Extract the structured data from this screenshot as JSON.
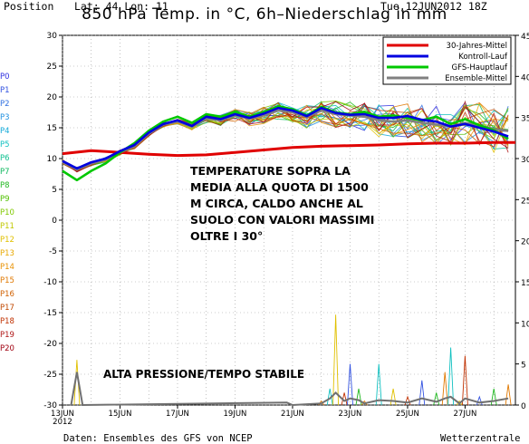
{
  "header": {
    "position_label": "Position",
    "coords": "Lat: 44 Lon: 11",
    "date": "Tue,12JUN2012 18Z",
    "title": "850 hPa Temp. in °C, 6h–Niederschlag in mm"
  },
  "members": [
    {
      "label": "P0",
      "color": "#3030e0"
    },
    {
      "label": "P1",
      "color": "#3050e0"
    },
    {
      "label": "P2",
      "color": "#3070e0"
    },
    {
      "label": "P3",
      "color": "#2090e0"
    },
    {
      "label": "P4",
      "color": "#10a8d8"
    },
    {
      "label": "P5",
      "color": "#10c0c0"
    },
    {
      "label": "P6",
      "color": "#10c090"
    },
    {
      "label": "P7",
      "color": "#10b860"
    },
    {
      "label": "P8",
      "color": "#20b820"
    },
    {
      "label": "P9",
      "color": "#50c000"
    },
    {
      "label": "P10",
      "color": "#80c800"
    },
    {
      "label": "P11",
      "color": "#c0c800"
    },
    {
      "label": "P12",
      "color": "#e0c000"
    },
    {
      "label": "P13",
      "color": "#e8a800"
    },
    {
      "label": "P14",
      "color": "#e89000"
    },
    {
      "label": "P15",
      "color": "#e07800"
    },
    {
      "label": "P16",
      "color": "#d06000"
    },
    {
      "label": "P17",
      "color": "#c04800"
    },
    {
      "label": "P18",
      "color": "#c03000"
    },
    {
      "label": "P19",
      "color": "#b01818"
    },
    {
      "label": "P20",
      "color": "#a00010"
    }
  ],
  "annotation_main": "TEMPERATURE SOPRA LA MEDIA ALLA QUOTA DI 1500 M CIRCA, CALDO ANCHE AL SUOLO CON VALORI MASSIMI OLTRE I 30°",
  "annotation_bottom": "ALTA PRESSIONE/TEMPO STABILE",
  "footer": {
    "source": "Daten: Ensembles des GFS von NCEP",
    "credit": "Wetterzentrale"
  },
  "chart_data": {
    "type": "line",
    "left_axis": {
      "min": -30,
      "max": 30,
      "ticks": [
        30,
        25,
        20,
        15,
        10,
        5,
        0,
        -5,
        -10,
        -15,
        -20,
        -25,
        -30
      ]
    },
    "right_axis": {
      "min": 0,
      "max": 45,
      "ticks": [
        45,
        40,
        35,
        30,
        25,
        20,
        15,
        10,
        5,
        0
      ]
    },
    "x_ticks": [
      "13JUN 2012",
      "15JUN",
      "17JUN",
      "19JUN",
      "21JUN",
      "23JUN",
      "25JUN",
      "27JUN"
    ],
    "x_range_days": [
      13,
      28.75
    ],
    "grid": true,
    "legend_position": "top-right",
    "legend": [
      {
        "name": "30-Jahres-Mittel",
        "color": "#e00000"
      },
      {
        "name": "Kontroll-Lauf",
        "color": "#0000e0"
      },
      {
        "name": "GFS-Hauptlauf",
        "color": "#00c800"
      },
      {
        "name": "Ensemble-Mittel",
        "color": "#808080"
      }
    ],
    "series": [
      {
        "name": "30-Jahres-Mittel",
        "color": "#e00000",
        "x": [
          13,
          14,
          15,
          16,
          17,
          18,
          19,
          20,
          21,
          22,
          23,
          24,
          25,
          26,
          27,
          28,
          28.75
        ],
        "y": [
          10.8,
          11.3,
          11.0,
          10.7,
          10.5,
          10.6,
          11.0,
          11.4,
          11.8,
          12.0,
          12.1,
          12.2,
          12.4,
          12.5,
          12.5,
          12.6,
          12.6
        ]
      },
      {
        "name": "Ensemble-Mittel",
        "color": "#808080",
        "x": [
          13,
          13.5,
          14,
          14.5,
          15,
          15.5,
          16,
          16.5,
          17,
          17.5,
          18,
          18.5,
          19,
          19.5,
          20,
          20.5,
          21,
          21.5,
          22,
          22.5,
          23,
          23.5,
          24,
          24.5,
          25,
          25.5,
          26,
          26.5,
          27,
          27.5,
          28,
          28.5
        ],
        "y": [
          9.5,
          8.2,
          9.2,
          9.8,
          11.0,
          12.0,
          14.0,
          15.5,
          16.0,
          15.2,
          16.5,
          16.2,
          17.0,
          16.5,
          17.0,
          17.8,
          17.5,
          16.8,
          17.8,
          17.2,
          17.0,
          16.8,
          16.2,
          16.0,
          16.2,
          15.8,
          15.5,
          15.2,
          15.8,
          15.4,
          14.8,
          14.5
        ]
      },
      {
        "name": "GFS-Hauptlauf",
        "color": "#00c800",
        "x": [
          13,
          13.5,
          14,
          14.5,
          15,
          15.5,
          16,
          16.5,
          17,
          17.5,
          18,
          18.5,
          19,
          19.5,
          20,
          20.5,
          21,
          21.5,
          22,
          22.5,
          23,
          23.5,
          24,
          24.5,
          25,
          25.5,
          26,
          26.5,
          27,
          27.5,
          28,
          28.5
        ],
        "y": [
          8.0,
          6.5,
          8.0,
          9.2,
          11.0,
          12.5,
          14.5,
          16.0,
          16.8,
          15.8,
          17.2,
          16.8,
          17.6,
          16.8,
          17.5,
          18.5,
          18.0,
          17.0,
          18.4,
          17.5,
          17.2,
          17.6,
          16.8,
          17.0,
          16.6,
          16.2,
          16.8,
          15.6,
          16.4,
          15.4,
          14.6,
          13.2
        ]
      },
      {
        "name": "Kontroll-Lauf",
        "color": "#0000e0",
        "x": [
          13,
          13.5,
          14,
          14.5,
          15,
          15.5,
          16,
          16.5,
          17,
          17.5,
          18,
          18.5,
          19,
          19.5,
          20,
          20.5,
          21,
          21.5,
          22,
          22.5,
          23,
          23.5,
          24,
          24.5,
          25,
          25.5,
          26,
          26.5,
          27,
          27.5,
          28,
          28.5
        ],
        "y": [
          9.6,
          8.4,
          9.4,
          10.0,
          11.2,
          12.2,
          14.2,
          15.6,
          16.2,
          15.3,
          16.8,
          16.4,
          17.2,
          16.6,
          17.3,
          18.2,
          17.8,
          16.9,
          18.2,
          17.4,
          17.1,
          17.2,
          16.6,
          16.6,
          16.9,
          16.3,
          16.0,
          15.2,
          15.6,
          15.0,
          14.4,
          13.6
        ]
      }
    ],
    "precip_series": {
      "unit": "mm",
      "x": [
        13.3,
        13.5,
        13.7,
        20.8,
        21.0,
        22.0,
        22.3,
        22.5,
        22.8,
        23.0,
        23.3,
        23.5,
        24.0,
        24.5,
        25.0,
        25.5,
        26.0,
        26.3,
        26.5,
        26.8,
        27.0,
        27.5,
        28.0,
        28.5
      ],
      "max": [
        0,
        5.5,
        0,
        0,
        0,
        0.5,
        2,
        11,
        1.5,
        5,
        2,
        0.5,
        5,
        2,
        1,
        3,
        1.5,
        4,
        7,
        0.5,
        6,
        1,
        2,
        2.5
      ],
      "mean": [
        0,
        4,
        0,
        0.3,
        0,
        0.2,
        0.8,
        1.5,
        0.5,
        0.8,
        0.6,
        0.2,
        0.6,
        0.5,
        0.3,
        0.8,
        0.4,
        0.8,
        1.0,
        0.2,
        0.8,
        0.3,
        0.5,
        0.8
      ]
    }
  }
}
